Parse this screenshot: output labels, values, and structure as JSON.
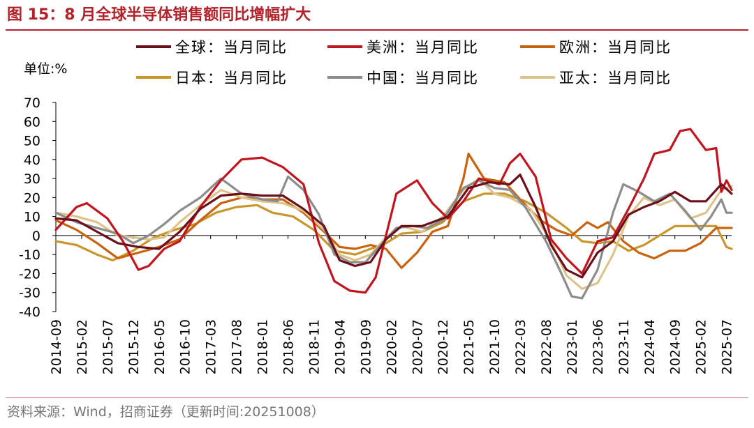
{
  "header": {
    "title": "图 15：8 月全球半导体销售额同比增幅扩大",
    "unit_label": "单位:%"
  },
  "footer": {
    "source": "资料来源：Wind，招商证券（更新时间:20251008）"
  },
  "chart_data": {
    "type": "line",
    "title": "8 月全球半导体销售额同比增幅扩大",
    "ylabel": "单位:%",
    "xlabel": "",
    "ylim": [
      -40,
      70
    ],
    "y_ticks": [
      70,
      60,
      50,
      40,
      30,
      20,
      10,
      0,
      -10,
      -20,
      -30,
      -40
    ],
    "x_range": [
      "2014-09",
      "2025-08"
    ],
    "x_tick_labels": [
      "2014-09",
      "2015-02",
      "2015-07",
      "2015-12",
      "2016-05",
      "2016-10",
      "2017-03",
      "2017-08",
      "2018-01",
      "2018-06",
      "2018-11",
      "2019-04",
      "2019-09",
      "2020-02",
      "2020-07",
      "2020-12",
      "2021-05",
      "2021-10",
      "2022-03",
      "2022-08",
      "2023-01",
      "2023-06",
      "2023-11",
      "2024-04",
      "2024-09",
      "2025-02",
      "2025-07"
    ],
    "legend_position": "top",
    "series": [
      {
        "name": "全球：当月同比",
        "color": "#6b0f1a",
        "points": [
          [
            "2014-09",
            9
          ],
          [
            "2015-01",
            8
          ],
          [
            "2015-05",
            2
          ],
          [
            "2015-09",
            -4
          ],
          [
            "2016-01",
            -6
          ],
          [
            "2016-05",
            -7
          ],
          [
            "2016-09",
            2
          ],
          [
            "2017-01",
            14
          ],
          [
            "2017-05",
            21
          ],
          [
            "2017-09",
            22
          ],
          [
            "2018-01",
            21
          ],
          [
            "2018-05",
            21
          ],
          [
            "2018-09",
            14
          ],
          [
            "2019-01",
            5
          ],
          [
            "2019-04",
            -13
          ],
          [
            "2019-07",
            -16
          ],
          [
            "2019-10",
            -14
          ],
          [
            "2020-01",
            -2
          ],
          [
            "2020-04",
            5
          ],
          [
            "2020-08",
            5
          ],
          [
            "2021-01",
            10
          ],
          [
            "2021-05",
            25
          ],
          [
            "2021-09",
            28
          ],
          [
            "2022-01",
            27
          ],
          [
            "2022-03",
            32
          ],
          [
            "2022-06",
            15
          ],
          [
            "2022-09",
            -5
          ],
          [
            "2022-12",
            -18
          ],
          [
            "2023-03",
            -22
          ],
          [
            "2023-06",
            -9
          ],
          [
            "2023-09",
            -3
          ],
          [
            "2023-12",
            11
          ],
          [
            "2024-03",
            15
          ],
          [
            "2024-06",
            18
          ],
          [
            "2024-09",
            23
          ],
          [
            "2024-12",
            18
          ],
          [
            "2025-03",
            18
          ],
          [
            "2025-06",
            27
          ],
          [
            "2025-08",
            22
          ]
        ]
      },
      {
        "name": "美洲：当月同比",
        "color": "#c0141e",
        "points": [
          [
            "2014-09",
            3
          ],
          [
            "2015-01",
            15
          ],
          [
            "2015-03",
            17
          ],
          [
            "2015-07",
            9
          ],
          [
            "2015-10",
            -3
          ],
          [
            "2016-01",
            -18
          ],
          [
            "2016-03",
            -16
          ],
          [
            "2016-06",
            -7
          ],
          [
            "2016-09",
            -3
          ],
          [
            "2017-01",
            15
          ],
          [
            "2017-05",
            29
          ],
          [
            "2017-09",
            40
          ],
          [
            "2018-01",
            41
          ],
          [
            "2018-05",
            36
          ],
          [
            "2018-09",
            27
          ],
          [
            "2018-12",
            -4
          ],
          [
            "2019-03",
            -24
          ],
          [
            "2019-06",
            -29
          ],
          [
            "2019-09",
            -30
          ],
          [
            "2019-11",
            -22
          ],
          [
            "2020-03",
            22
          ],
          [
            "2020-07",
            29
          ],
          [
            "2020-10",
            17
          ],
          [
            "2021-01",
            9
          ],
          [
            "2021-04",
            18
          ],
          [
            "2021-07",
            30
          ],
          [
            "2021-11",
            27
          ],
          [
            "2022-01",
            38
          ],
          [
            "2022-03",
            43
          ],
          [
            "2022-06",
            31
          ],
          [
            "2022-09",
            -2
          ],
          [
            "2022-12",
            -12
          ],
          [
            "2023-03",
            -20
          ],
          [
            "2023-06",
            -3
          ],
          [
            "2023-09",
            -1
          ],
          [
            "2023-12",
            14
          ],
          [
            "2024-03",
            30
          ],
          [
            "2024-05",
            43
          ],
          [
            "2024-08",
            45
          ],
          [
            "2024-10",
            55
          ],
          [
            "2024-12",
            56
          ],
          [
            "2025-03",
            45
          ],
          [
            "2025-05",
            46
          ],
          [
            "2025-06",
            23
          ],
          [
            "2025-07",
            29
          ],
          [
            "2025-08",
            24
          ]
        ]
      },
      {
        "name": "欧洲：当月同比",
        "color": "#c8620f",
        "points": [
          [
            "2014-09",
            8
          ],
          [
            "2015-01",
            3
          ],
          [
            "2015-05",
            -4
          ],
          [
            "2015-09",
            -12
          ],
          [
            "2016-01",
            -9
          ],
          [
            "2016-05",
            -6
          ],
          [
            "2016-09",
            -2
          ],
          [
            "2017-01",
            8
          ],
          [
            "2017-05",
            17
          ],
          [
            "2017-09",
            20
          ],
          [
            "2018-01",
            19
          ],
          [
            "2018-05",
            19
          ],
          [
            "2018-09",
            12
          ],
          [
            "2019-01",
            2
          ],
          [
            "2019-04",
            -6
          ],
          [
            "2019-07",
            -7
          ],
          [
            "2019-10",
            -5
          ],
          [
            "2020-01",
            -7
          ],
          [
            "2020-04",
            -17
          ],
          [
            "2020-07",
            -9
          ],
          [
            "2020-10",
            2
          ],
          [
            "2021-01",
            5
          ],
          [
            "2021-04",
            30
          ],
          [
            "2021-05",
            43
          ],
          [
            "2021-08",
            30
          ],
          [
            "2021-12",
            28
          ],
          [
            "2022-03",
            19
          ],
          [
            "2022-07",
            8
          ],
          [
            "2022-10",
            3
          ],
          [
            "2023-01",
            0
          ],
          [
            "2023-04",
            7
          ],
          [
            "2023-06",
            4
          ],
          [
            "2023-08",
            7
          ],
          [
            "2023-11",
            -3
          ],
          [
            "2024-02",
            -9
          ],
          [
            "2024-05",
            -12
          ],
          [
            "2024-08",
            -8
          ],
          [
            "2024-11",
            -8
          ],
          [
            "2025-02",
            -4
          ],
          [
            "2025-05",
            4
          ],
          [
            "2025-08",
            4
          ]
        ]
      },
      {
        "name": "日本：当月同比",
        "color": "#c9962e",
        "points": [
          [
            "2014-09",
            -3
          ],
          [
            "2015-01",
            -5
          ],
          [
            "2015-05",
            -10
          ],
          [
            "2015-08",
            -13
          ],
          [
            "2015-12",
            -8
          ],
          [
            "2016-04",
            -1
          ],
          [
            "2016-08",
            3
          ],
          [
            "2016-12",
            6
          ],
          [
            "2017-04",
            12
          ],
          [
            "2017-08",
            15
          ],
          [
            "2017-12",
            16
          ],
          [
            "2018-03",
            12
          ],
          [
            "2018-07",
            10
          ],
          [
            "2018-11",
            3
          ],
          [
            "2019-03",
            -8
          ],
          [
            "2019-07",
            -10
          ],
          [
            "2019-10",
            -7
          ],
          [
            "2020-01",
            -4
          ],
          [
            "2020-04",
            1
          ],
          [
            "2020-08",
            2
          ],
          [
            "2020-12",
            7
          ],
          [
            "2021-04",
            18
          ],
          [
            "2021-08",
            22
          ],
          [
            "2021-12",
            22
          ],
          [
            "2022-04",
            18
          ],
          [
            "2022-08",
            12
          ],
          [
            "2022-12",
            4
          ],
          [
            "2023-03",
            -3
          ],
          [
            "2023-06",
            -4
          ],
          [
            "2023-09",
            -3
          ],
          [
            "2023-12",
            -8
          ],
          [
            "2024-03",
            -5
          ],
          [
            "2024-06",
            0
          ],
          [
            "2024-09",
            5
          ],
          [
            "2024-12",
            5
          ],
          [
            "2025-03",
            5
          ],
          [
            "2025-05",
            5
          ],
          [
            "2025-07",
            -6
          ],
          [
            "2025-08",
            -7
          ]
        ]
      },
      {
        "name": "中国：当月同比",
        "color": "#8c8c8c",
        "points": [
          [
            "2014-09",
            12
          ],
          [
            "2015-01",
            7
          ],
          [
            "2015-05",
            4
          ],
          [
            "2015-09",
            1
          ],
          [
            "2015-12",
            -4
          ],
          [
            "2016-03",
            0
          ],
          [
            "2016-06",
            6
          ],
          [
            "2016-09",
            13
          ],
          [
            "2017-01",
            20
          ],
          [
            "2017-05",
            30
          ],
          [
            "2017-09",
            22
          ],
          [
            "2018-01",
            19
          ],
          [
            "2018-04",
            18
          ],
          [
            "2018-06",
            31
          ],
          [
            "2018-09",
            24
          ],
          [
            "2018-12",
            11
          ],
          [
            "2019-03",
            -10
          ],
          [
            "2019-06",
            -14
          ],
          [
            "2019-09",
            -14
          ],
          [
            "2019-12",
            -5
          ],
          [
            "2020-03",
            4
          ],
          [
            "2020-06",
            5
          ],
          [
            "2020-09",
            4
          ],
          [
            "2020-12",
            8
          ],
          [
            "2021-04",
            25
          ],
          [
            "2021-07",
            29
          ],
          [
            "2021-10",
            25
          ],
          [
            "2022-01",
            24
          ],
          [
            "2022-04",
            15
          ],
          [
            "2022-08",
            -3
          ],
          [
            "2022-11",
            -20
          ],
          [
            "2023-01",
            -32
          ],
          [
            "2023-03",
            -33
          ],
          [
            "2023-06",
            -18
          ],
          [
            "2023-09",
            12
          ],
          [
            "2023-11",
            27
          ],
          [
            "2024-02",
            23
          ],
          [
            "2024-05",
            18
          ],
          [
            "2024-08",
            22
          ],
          [
            "2024-11",
            13
          ],
          [
            "2025-02",
            3
          ],
          [
            "2025-04",
            10
          ],
          [
            "2025-06",
            19
          ],
          [
            "2025-07",
            12
          ],
          [
            "2025-08",
            12
          ]
        ]
      },
      {
        "name": "亚太：当月同比",
        "color": "#dcc48a",
        "points": [
          [
            "2014-09",
            12
          ],
          [
            "2015-01",
            10
          ],
          [
            "2015-05",
            7
          ],
          [
            "2015-09",
            0
          ],
          [
            "2015-12",
            -1
          ],
          [
            "2016-03",
            -2
          ],
          [
            "2016-06",
            -1
          ],
          [
            "2016-09",
            7
          ],
          [
            "2017-01",
            16
          ],
          [
            "2017-05",
            24
          ],
          [
            "2017-09",
            20
          ],
          [
            "2018-01",
            18
          ],
          [
            "2018-05",
            17
          ],
          [
            "2018-09",
            13
          ],
          [
            "2019-01",
            3
          ],
          [
            "2019-04",
            -10
          ],
          [
            "2019-07",
            -13
          ],
          [
            "2019-10",
            -10
          ],
          [
            "2020-01",
            -1
          ],
          [
            "2020-04",
            5
          ],
          [
            "2020-08",
            2
          ],
          [
            "2020-12",
            10
          ],
          [
            "2021-04",
            24
          ],
          [
            "2021-07",
            30
          ],
          [
            "2021-10",
            22
          ],
          [
            "2022-01",
            20
          ],
          [
            "2022-05",
            14
          ],
          [
            "2022-09",
            -3
          ],
          [
            "2022-12",
            -21
          ],
          [
            "2023-03",
            -28
          ],
          [
            "2023-06",
            -25
          ],
          [
            "2023-09",
            -10
          ],
          [
            "2023-12",
            10
          ],
          [
            "2024-03",
            20
          ],
          [
            "2024-06",
            16
          ],
          [
            "2024-09",
            19
          ],
          [
            "2024-12",
            9
          ],
          [
            "2025-03",
            12
          ],
          [
            "2025-06",
            24
          ],
          [
            "2025-08",
            26
          ]
        ]
      }
    ]
  }
}
